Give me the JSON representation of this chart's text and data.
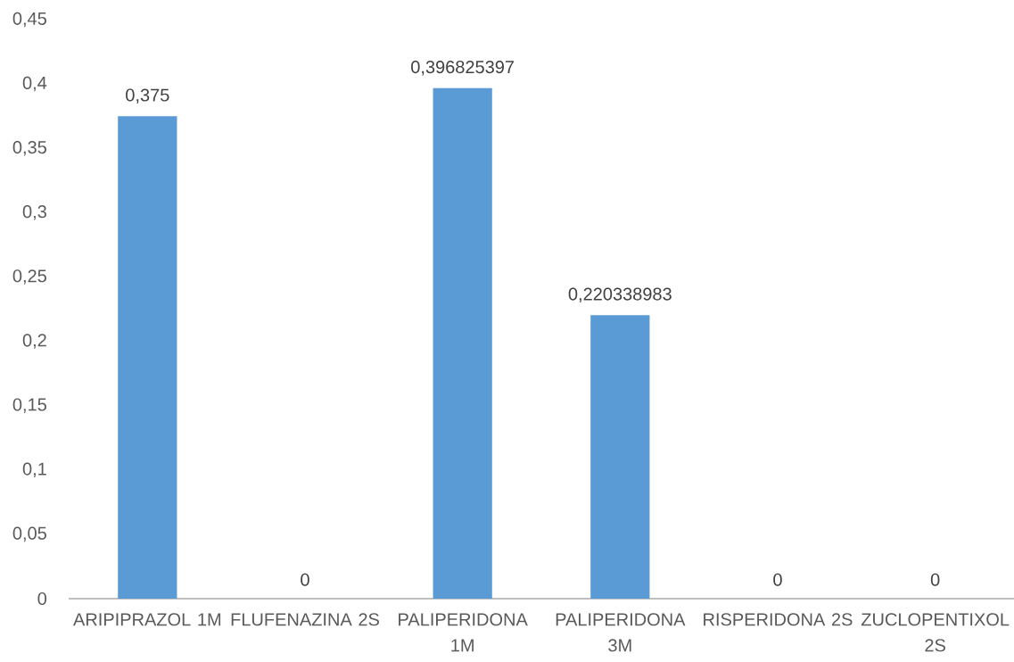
{
  "chart_data": {
    "type": "bar",
    "categories": [
      "ARIPIPRAZOL 1M",
      "FLUFENAZINA 2S",
      "PALIPERIDONA 1M",
      "PALIPERIDONA 3M",
      "RISPERIDONA 2S",
      "ZUCLOPENTIXOL 2S"
    ],
    "values": [
      0.375,
      0,
      0.396825397,
      0.220338983,
      0,
      0
    ],
    "value_labels": [
      "0,375",
      "0",
      "0,396825397",
      "0,220338983",
      "0",
      "0"
    ],
    "color": "#5b9bd5",
    "ylim": [
      0,
      0.45
    ],
    "yticks": [
      0,
      {
        "value": 0.05,
        "label": "0,05"
      },
      {
        "value": 0.1,
        "label": "0,1"
      },
      {
        "value": 0.15,
        "label": "0,15"
      },
      {
        "value": 0.2,
        "label": "0,2"
      },
      {
        "value": 0.25,
        "label": "0,25"
      },
      {
        "value": 0.3,
        "label": "0,3"
      },
      {
        "value": 0.35,
        "label": "0,35"
      },
      {
        "value": 0.4,
        "label": "0,4"
      },
      {
        "value": 0.45,
        "label": "0,45"
      }
    ]
  }
}
